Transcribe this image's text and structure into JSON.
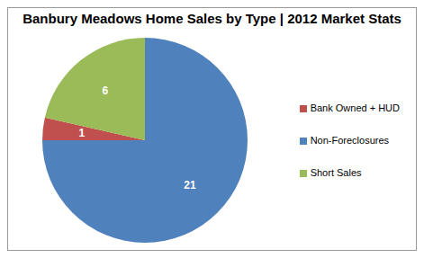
{
  "chart_data": {
    "type": "pie",
    "title": "Banbury Meadows Home Sales by Type | 2012 Market Stats",
    "categories": [
      "Non-Foreclosures",
      "Bank Owned + HUD",
      "Short Sales"
    ],
    "values": [
      21,
      1,
      6
    ],
    "colors": [
      "#4f81bd",
      "#c0504d",
      "#9bbb59"
    ],
    "data_labels": true,
    "legend": "right"
  }
}
